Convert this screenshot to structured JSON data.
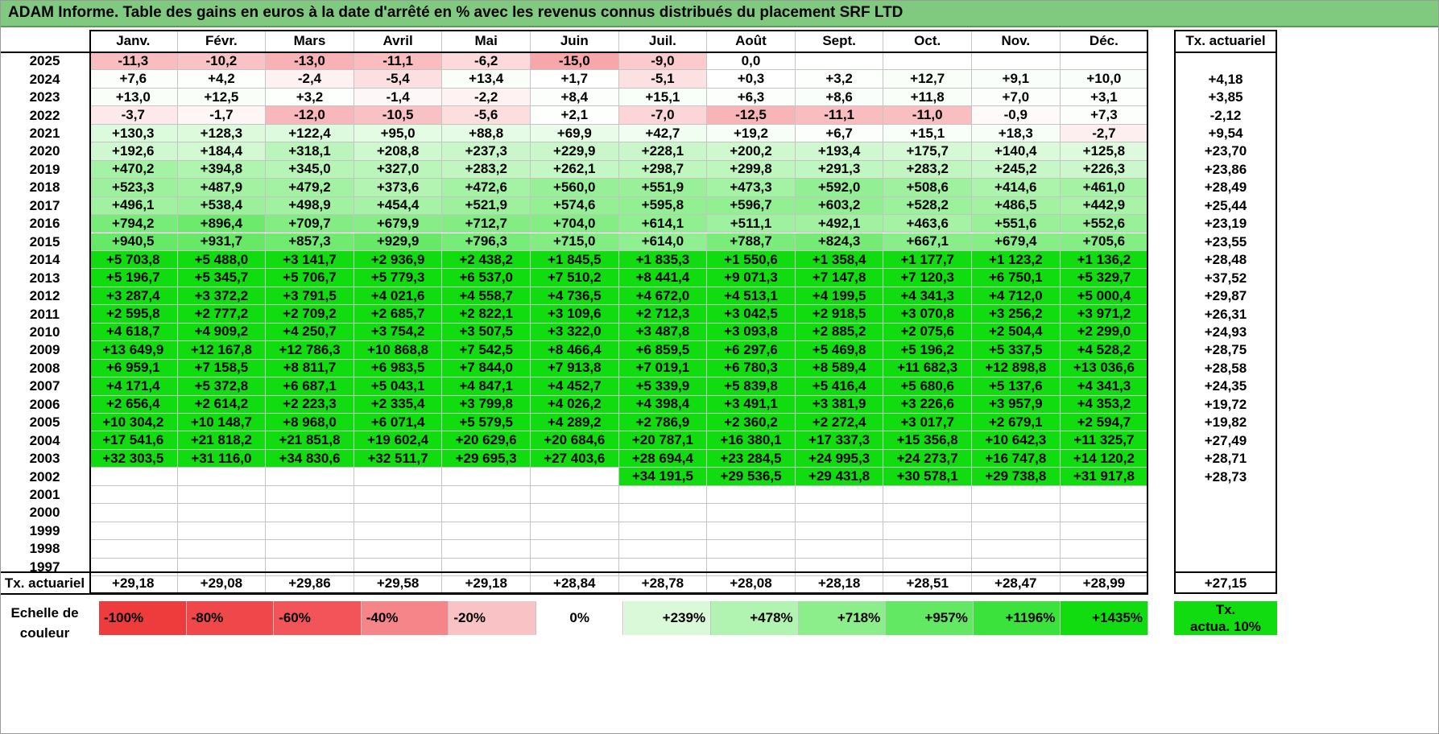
{
  "title": "ADAM Informe. Table des gains en euros à la date d'arrêté en % avec les revenus connus distribués du placement SRF LTD",
  "months": [
    "Janv.",
    "Févr.",
    "Mars",
    "Avril",
    "Mai",
    "Juin",
    "Juil.",
    "Août",
    "Sept.",
    "Oct.",
    "Nov.",
    "Déc."
  ],
  "actuarial_header": "Tx. actuariel",
  "rows": [
    {
      "year": "2025",
      "values": [
        "-11,3",
        "-10,2",
        "-13,0",
        "-11,1",
        "-6,2",
        "-15,0",
        "-9,0",
        "0,0",
        "",
        "",
        "",
        ""
      ],
      "rate": ""
    },
    {
      "year": "2024",
      "values": [
        "+7,6",
        "+4,2",
        "-2,4",
        "-5,4",
        "+13,4",
        "+1,7",
        "-5,1",
        "+0,3",
        "+3,2",
        "+12,7",
        "+9,1",
        "+10,0"
      ],
      "rate": "+4,18"
    },
    {
      "year": "2023",
      "values": [
        "+13,0",
        "+12,5",
        "+3,2",
        "-1,4",
        "-2,2",
        "+8,4",
        "+15,1",
        "+6,3",
        "+8,6",
        "+11,8",
        "+7,0",
        "+3,1"
      ],
      "rate": "+3,85"
    },
    {
      "year": "2022",
      "values": [
        "-3,7",
        "-1,7",
        "-12,0",
        "-10,5",
        "-5,6",
        "+2,1",
        "-7,0",
        "-12,5",
        "-11,1",
        "-11,0",
        "-0,9",
        "+7,3"
      ],
      "rate": "-2,12"
    },
    {
      "year": "2021",
      "values": [
        "+130,3",
        "+128,3",
        "+122,4",
        "+95,0",
        "+88,8",
        "+69,9",
        "+42,7",
        "+19,2",
        "+6,7",
        "+15,1",
        "+18,3",
        "-2,7"
      ],
      "rate": "+9,54"
    },
    {
      "year": "2020",
      "values": [
        "+192,6",
        "+184,4",
        "+318,1",
        "+208,8",
        "+237,3",
        "+229,9",
        "+228,1",
        "+200,2",
        "+193,4",
        "+175,7",
        "+140,4",
        "+125,8"
      ],
      "rate": "+23,70"
    },
    {
      "year": "2019",
      "values": [
        "+470,2",
        "+394,8",
        "+345,0",
        "+327,0",
        "+283,2",
        "+262,1",
        "+298,7",
        "+299,8",
        "+291,3",
        "+283,2",
        "+245,2",
        "+226,3"
      ],
      "rate": "+23,86"
    },
    {
      "year": "2018",
      "values": [
        "+523,3",
        "+487,9",
        "+479,2",
        "+373,6",
        "+472,6",
        "+560,0",
        "+551,9",
        "+473,3",
        "+592,0",
        "+508,6",
        "+414,6",
        "+461,0"
      ],
      "rate": "+28,49"
    },
    {
      "year": "2017",
      "values": [
        "+496,1",
        "+538,4",
        "+498,9",
        "+454,4",
        "+521,9",
        "+574,6",
        "+595,8",
        "+596,7",
        "+603,2",
        "+528,2",
        "+486,5",
        "+442,9"
      ],
      "rate": "+25,44"
    },
    {
      "year": "2016",
      "values": [
        "+794,2",
        "+896,4",
        "+709,7",
        "+679,9",
        "+712,7",
        "+704,0",
        "+614,1",
        "+511,1",
        "+492,1",
        "+463,6",
        "+551,6",
        "+552,6"
      ],
      "rate": "+23,19"
    },
    {
      "year": "2015",
      "values": [
        "+940,5",
        "+931,7",
        "+857,3",
        "+929,9",
        "+796,3",
        "+715,0",
        "+614,0",
        "+788,7",
        "+824,3",
        "+667,1",
        "+679,4",
        "+705,6"
      ],
      "rate": "+23,55"
    },
    {
      "year": "2014",
      "values": [
        "+5 703,8",
        "+5 488,0",
        "+3 141,7",
        "+2 936,9",
        "+2 438,2",
        "+1 845,5",
        "+1 835,3",
        "+1 550,6",
        "+1 358,4",
        "+1 177,7",
        "+1 123,2",
        "+1 136,2"
      ],
      "rate": "+28,48"
    },
    {
      "year": "2013",
      "values": [
        "+5 196,7",
        "+5 345,7",
        "+5 706,7",
        "+5 779,3",
        "+6 537,0",
        "+7 510,2",
        "+8 441,4",
        "+9 071,3",
        "+7 147,8",
        "+7 120,3",
        "+6 750,1",
        "+5 329,7"
      ],
      "rate": "+37,52"
    },
    {
      "year": "2012",
      "values": [
        "+3 287,4",
        "+3 372,2",
        "+3 791,5",
        "+4 021,6",
        "+4 558,7",
        "+4 736,5",
        "+4 672,0",
        "+4 513,1",
        "+4 199,5",
        "+4 341,3",
        "+4 712,0",
        "+5 000,4"
      ],
      "rate": "+29,87"
    },
    {
      "year": "2011",
      "values": [
        "+2 595,8",
        "+2 777,2",
        "+2 709,2",
        "+2 685,7",
        "+2 822,1",
        "+3 109,6",
        "+2 712,3",
        "+3 042,5",
        "+2 918,5",
        "+3 070,8",
        "+3 256,2",
        "+3 971,2"
      ],
      "rate": "+26,31"
    },
    {
      "year": "2010",
      "values": [
        "+4 618,7",
        "+4 909,2",
        "+4 250,7",
        "+3 754,2",
        "+3 507,5",
        "+3 322,0",
        "+3 487,8",
        "+3 093,8",
        "+2 885,2",
        "+2 075,6",
        "+2 504,4",
        "+2 299,0"
      ],
      "rate": "+24,93"
    },
    {
      "year": "2009",
      "values": [
        "+13 649,9",
        "+12 167,8",
        "+12 786,3",
        "+10 868,8",
        "+7 542,5",
        "+8 466,4",
        "+6 859,5",
        "+6 297,6",
        "+5 469,8",
        "+5 196,2",
        "+5 337,5",
        "+4 528,2"
      ],
      "rate": "+28,75"
    },
    {
      "year": "2008",
      "values": [
        "+6 959,1",
        "+7 158,5",
        "+8 811,7",
        "+6 983,5",
        "+7 844,0",
        "+7 913,8",
        "+7 019,1",
        "+6 780,3",
        "+8 589,4",
        "+11 682,3",
        "+12 898,8",
        "+13 036,6"
      ],
      "rate": "+28,58"
    },
    {
      "year": "2007",
      "values": [
        "+4 171,4",
        "+5 372,8",
        "+6 687,1",
        "+5 043,1",
        "+4 847,1",
        "+4 452,7",
        "+5 339,9",
        "+5 839,8",
        "+5 416,4",
        "+5 680,6",
        "+5 137,6",
        "+4 341,3"
      ],
      "rate": "+24,35"
    },
    {
      "year": "2006",
      "values": [
        "+2 656,4",
        "+2 614,2",
        "+2 223,3",
        "+2 335,4",
        "+3 799,8",
        "+4 026,2",
        "+4 398,4",
        "+3 491,1",
        "+3 381,9",
        "+3 226,6",
        "+3 957,9",
        "+4 353,2"
      ],
      "rate": "+19,72"
    },
    {
      "year": "2005",
      "values": [
        "+10 304,2",
        "+10 148,7",
        "+8 968,0",
        "+6 071,4",
        "+5 579,5",
        "+4 289,2",
        "+2 786,9",
        "+2 360,2",
        "+2 272,4",
        "+3 017,7",
        "+2 679,1",
        "+2 594,7"
      ],
      "rate": "+19,82"
    },
    {
      "year": "2004",
      "values": [
        "+17 541,6",
        "+21 818,2",
        "+21 851,8",
        "+19 602,4",
        "+20 629,6",
        "+20 684,6",
        "+20 787,1",
        "+16 380,1",
        "+17 337,3",
        "+15 356,8",
        "+10 642,3",
        "+11 325,7"
      ],
      "rate": "+27,49"
    },
    {
      "year": "2003",
      "values": [
        "+32 303,5",
        "+31 116,0",
        "+34 830,6",
        "+32 511,7",
        "+29 695,3",
        "+27 403,6",
        "+28 694,4",
        "+23 284,5",
        "+24 995,3",
        "+24 273,7",
        "+16 747,8",
        "+14 120,2"
      ],
      "rate": "+28,71"
    },
    {
      "year": "2002",
      "values": [
        "",
        "",
        "",
        "",
        "",
        "",
        "+34 191,5",
        "+29 536,5",
        "+29 431,8",
        "+30 578,1",
        "+29 738,8",
        "+31 917,8"
      ],
      "rate": "+28,73"
    },
    {
      "year": "2001",
      "values": [
        "",
        "",
        "",
        "",
        "",
        "",
        "",
        "",
        "",
        "",
        "",
        ""
      ],
      "rate": ""
    },
    {
      "year": "2000",
      "values": [
        "",
        "",
        "",
        "",
        "",
        "",
        "",
        "",
        "",
        "",
        "",
        ""
      ],
      "rate": ""
    },
    {
      "year": "1999",
      "values": [
        "",
        "",
        "",
        "",
        "",
        "",
        "",
        "",
        "",
        "",
        "",
        ""
      ],
      "rate": ""
    },
    {
      "year": "1998",
      "values": [
        "",
        "",
        "",
        "",
        "",
        "",
        "",
        "",
        "",
        "",
        "",
        ""
      ],
      "rate": ""
    },
    {
      "year": "1997",
      "values": [
        "",
        "",
        "",
        "",
        "",
        "",
        "",
        "",
        "",
        "",
        "",
        ""
      ],
      "rate": ""
    }
  ],
  "footer": {
    "label": "Tx. actuariel",
    "values": [
      "+29,18",
      "+29,08",
      "+29,86",
      "+29,58",
      "+29,18",
      "+28,84",
      "+28,78",
      "+28,08",
      "+28,18",
      "+28,51",
      "+28,47",
      "+28,99"
    ],
    "total": "+27,15"
  },
  "scale": {
    "label_line1": "Echelle de",
    "label_line2": "couleur",
    "items": [
      {
        "text": "-100%",
        "color": "#ee3b3b",
        "align": "left"
      },
      {
        "text": "-80%",
        "color": "#f0474a",
        "align": "left"
      },
      {
        "text": "-60%",
        "color": "#f25459",
        "align": "left"
      },
      {
        "text": "-40%",
        "color": "#f58589",
        "align": "left"
      },
      {
        "text": "-20%",
        "color": "#f9c2c4",
        "align": "left"
      },
      {
        "text": "0%",
        "color": "#ffffff",
        "align": "center"
      },
      {
        "text": "+239%",
        "color": "#d9f9d9",
        "align": "right"
      },
      {
        "text": "+478%",
        "color": "#b1f3b1",
        "align": "right"
      },
      {
        "text": "+718%",
        "color": "#8bee8b",
        "align": "right"
      },
      {
        "text": "+957%",
        "color": "#62e862",
        "align": "right"
      },
      {
        "text": "+1196%",
        "color": "#3be23b",
        "align": "right"
      },
      {
        "text": "+1435%",
        "color": "#10dc10",
        "align": "right"
      }
    ],
    "ref_line1": "Tx.",
    "ref_line2": "actua. 10%",
    "ref_color": "#10dc10"
  },
  "colors": {
    "title_bg": "#7fca7f",
    "strong_green": "#10dc10"
  }
}
